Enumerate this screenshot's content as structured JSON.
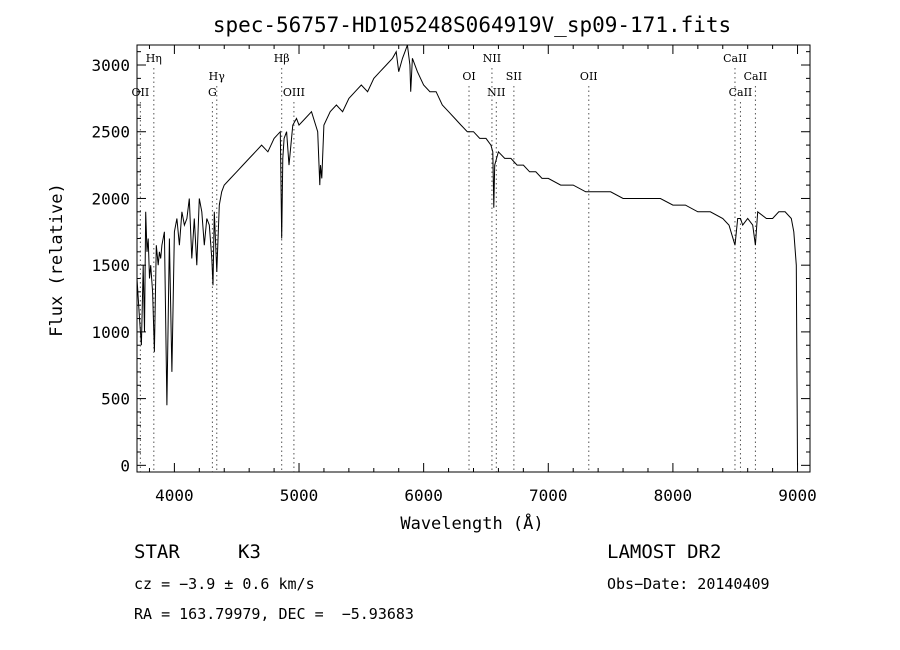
{
  "chart_data": {
    "type": "line",
    "title": "spec-56757-HD105248S064919V_sp09-171.fits",
    "xlabel": "Wavelength (Å)",
    "ylabel": "Flux (relative)",
    "xlim": [
      3700,
      9100
    ],
    "ylim": [
      -50,
      3150
    ],
    "x_ticks": [
      4000,
      5000,
      6000,
      7000,
      8000,
      9000
    ],
    "y_ticks": [
      0,
      500,
      1000,
      1500,
      2000,
      2500,
      3000
    ],
    "grid": false,
    "line_color": "#000000",
    "series": [
      {
        "x": [
          3700,
          3720,
          3735,
          3750,
          3760,
          3770,
          3780,
          3790,
          3800,
          3810,
          3825,
          3840,
          3855,
          3870,
          3880,
          3890,
          3900,
          3920,
          3940,
          3960,
          3980,
          4000,
          4020,
          4040,
          4060,
          4080,
          4100,
          4120,
          4140,
          4160,
          4180,
          4200,
          4220,
          4240,
          4260,
          4280,
          4300,
          4310,
          4320,
          4340,
          4360,
          4380,
          4400,
          4450,
          4500,
          4550,
          4600,
          4650,
          4700,
          4750,
          4800,
          4850,
          4861,
          4870,
          4880,
          4900,
          4920,
          4950,
          4980,
          5000,
          5050,
          5100,
          5150,
          5167,
          5172,
          5183,
          5200,
          5250,
          5300,
          5350,
          5400,
          5450,
          5500,
          5550,
          5600,
          5650,
          5700,
          5750,
          5780,
          5800,
          5830,
          5850,
          5870,
          5890,
          5896,
          5910,
          5950,
          6000,
          6050,
          6100,
          6150,
          6200,
          6250,
          6300,
          6350,
          6400,
          6450,
          6500,
          6540,
          6555,
          6563,
          6570,
          6600,
          6650,
          6700,
          6750,
          6800,
          6850,
          6900,
          6950,
          7000,
          7100,
          7200,
          7300,
          7400,
          7500,
          7600,
          7700,
          7800,
          7900,
          8000,
          8100,
          8200,
          8300,
          8400,
          8450,
          8498,
          8520,
          8542,
          8560,
          8600,
          8640,
          8662,
          8680,
          8750,
          8800,
          8850,
          8900,
          8950,
          8970,
          8990,
          9000
        ],
        "y": [
          1400,
          1100,
          900,
          1500,
          1000,
          1900,
          1600,
          1700,
          1400,
          1500,
          1300,
          850,
          1650,
          1500,
          1600,
          1550,
          1650,
          1750,
          450,
          1700,
          700,
          1750,
          1850,
          1650,
          1900,
          1800,
          1850,
          2000,
          1550,
          1850,
          1500,
          2000,
          1900,
          1650,
          1850,
          1800,
          1550,
          1350,
          1900,
          1450,
          1950,
          2050,
          2100,
          2150,
          2200,
          2250,
          2300,
          2350,
          2400,
          2350,
          2450,
          2500,
          1700,
          2300,
          2450,
          2500,
          2250,
          2550,
          2600,
          2550,
          2600,
          2650,
          2500,
          2100,
          2250,
          2150,
          2550,
          2650,
          2700,
          2650,
          2750,
          2800,
          2850,
          2800,
          2900,
          2950,
          3000,
          3050,
          3100,
          2950,
          3050,
          3100,
          3150,
          3000,
          2800,
          3050,
          2950,
          2850,
          2800,
          2800,
          2700,
          2650,
          2600,
          2550,
          2500,
          2500,
          2450,
          2450,
          2400,
          2350,
          1930,
          2250,
          2350,
          2300,
          2300,
          2250,
          2250,
          2200,
          2200,
          2150,
          2150,
          2100,
          2100,
          2050,
          2050,
          2050,
          2000,
          2000,
          2000,
          2000,
          1950,
          1950,
          1900,
          1900,
          1850,
          1800,
          1650,
          1850,
          1850,
          1800,
          1850,
          1800,
          1650,
          1900,
          1850,
          1850,
          1900,
          1900,
          1850,
          1750,
          1500,
          0
        ]
      }
    ],
    "line_markers": [
      {
        "label": "Hη",
        "x": 3835,
        "row": 0
      },
      {
        "label": "OII",
        "x": 3727,
        "row": 2
      },
      {
        "label": "Hγ",
        "x": 4340,
        "row": 1
      },
      {
        "label": "G",
        "x": 4305,
        "row": 2
      },
      {
        "label": "Hβ",
        "x": 4861,
        "row": 0
      },
      {
        "label": "OIII",
        "x": 4959,
        "row": 2
      },
      {
        "label": "NII",
        "x": 6548,
        "row": 0
      },
      {
        "label": "OI",
        "x": 6364,
        "row": 1
      },
      {
        "label": "NII",
        "x": 6583,
        "row": 2
      },
      {
        "label": "OII",
        "x": 7325,
        "row": 1
      },
      {
        "label": "SII",
        "x": 6724,
        "row": 1
      },
      {
        "label": "CaII",
        "x": 8498,
        "row": 0
      },
      {
        "label": "CaII",
        "x": 8662,
        "row": 1
      },
      {
        "label": "CaII",
        "x": 8542,
        "row": 2
      }
    ]
  },
  "info": {
    "object_class": "STAR",
    "subclass": "K3",
    "survey": "LAMOST DR2",
    "redshift": "cz = −3.9 ± 0.6 km/s",
    "obs_date": "Obs−Date: 20140409",
    "coords": "RA = 163.79979, DEC =  −5.93683"
  }
}
